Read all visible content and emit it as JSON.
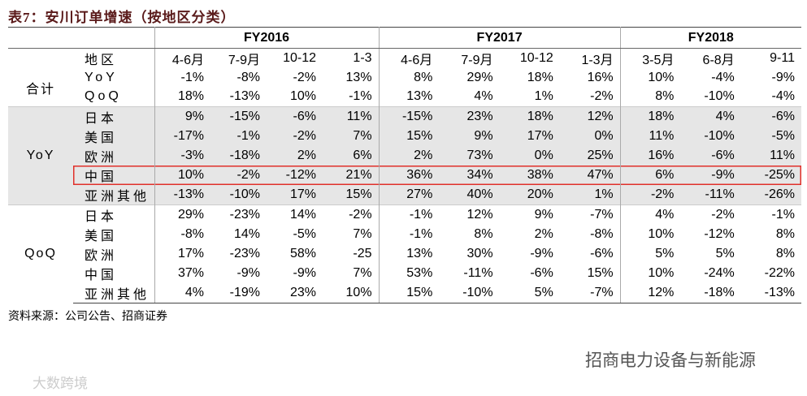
{
  "title": "表7：安川订单增速（按地区分类）",
  "header": {
    "region_label": "地区",
    "groups": [
      {
        "label": "FY2016",
        "columns": [
          "4-6月",
          "7-9月",
          "10-12",
          "1-3"
        ]
      },
      {
        "label": "FY2017",
        "columns": [
          "4-6月",
          "7-9月",
          "10-12",
          "1-3月"
        ]
      },
      {
        "label": "FY2018",
        "columns": [
          "3-5月",
          "6-8月",
          "9-11"
        ]
      }
    ]
  },
  "sections": [
    {
      "label": "合计",
      "rows": [
        {
          "label": "YoY",
          "values": [
            "-1%",
            "-8%",
            "-2%",
            "13%",
            "8%",
            "29%",
            "18%",
            "16%",
            "10%",
            "-4%",
            "-9%"
          ]
        },
        {
          "label": "QoQ",
          "values": [
            "18%",
            "-13%",
            "10%",
            "-1%",
            "13%",
            "4%",
            "1%",
            "-2%",
            "8%",
            "-10%",
            "-4%"
          ]
        }
      ]
    },
    {
      "label": "YoY",
      "shaded": true,
      "rows": [
        {
          "label": "日本",
          "values": [
            "9%",
            "-15%",
            "-6%",
            "11%",
            "-15%",
            "23%",
            "18%",
            "12%",
            "18%",
            "4%",
            "-6%"
          ]
        },
        {
          "label": "美国",
          "values": [
            "-17%",
            "-1%",
            "-2%",
            "7%",
            "15%",
            "9%",
            "17%",
            "0%",
            "11%",
            "-10%",
            "-5%"
          ]
        },
        {
          "label": "欧洲",
          "values": [
            "-3%",
            "-18%",
            "2%",
            "6%",
            "2%",
            "73%",
            "0%",
            "25%",
            "16%",
            "-6%",
            "11%"
          ]
        },
        {
          "label": "中国",
          "highlight": true,
          "values": [
            "10%",
            "-2%",
            "-12%",
            "21%",
            "36%",
            "34%",
            "38%",
            "47%",
            "6%",
            "-9%",
            "-25%"
          ]
        },
        {
          "label": "亚洲其他",
          "values": [
            "-13%",
            "-10%",
            "17%",
            "15%",
            "27%",
            "40%",
            "20%",
            "1%",
            "-2%",
            "-11%",
            "-26%"
          ]
        }
      ]
    },
    {
      "label": "QoQ",
      "rows": [
        {
          "label": "日本",
          "values": [
            "29%",
            "-23%",
            "14%",
            "-2%",
            "-1%",
            "12%",
            "9%",
            "-7%",
            "4%",
            "-2%",
            "-1%"
          ]
        },
        {
          "label": "美国",
          "values": [
            "-8%",
            "14%",
            "-5%",
            "7%",
            "-1%",
            "8%",
            "2%",
            "-8%",
            "10%",
            "-12%",
            "8%"
          ]
        },
        {
          "label": "欧洲",
          "values": [
            "17%",
            "-23%",
            "58%",
            "-25",
            "13%",
            "30%",
            "-9%",
            "-6%",
            "5%",
            "5%",
            "8%"
          ]
        },
        {
          "label": "中国",
          "values": [
            "37%",
            "-9%",
            "-9%",
            "7%",
            "53%",
            "-11%",
            "-6%",
            "15%",
            "10%",
            "-24%",
            "-22%"
          ]
        },
        {
          "label": "亚洲其他",
          "values": [
            "4%",
            "-19%",
            "23%",
            "10%",
            "15%",
            "-10%",
            "5%",
            "-7%",
            "12%",
            "-18%",
            "-13%"
          ]
        }
      ]
    }
  ],
  "source": "资料来源：公司公告、招商证券",
  "watermarks": [
    "招商电力设备与新能源",
    "大数跨境"
  ]
}
